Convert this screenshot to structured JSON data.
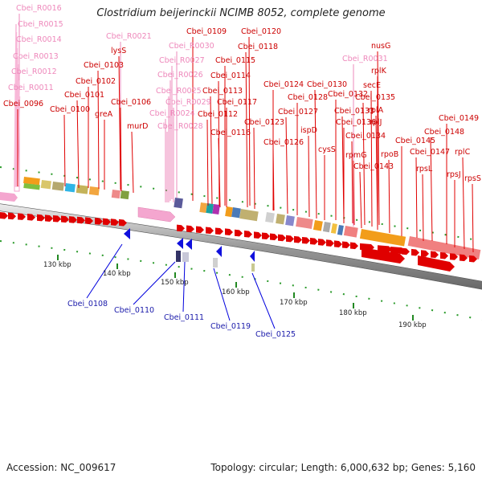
{
  "title": "Clostridium beijerinckii NCIMB 8052, complete genome",
  "footer": {
    "accession": "Accession: NC_009617",
    "summary": "Topology: circular; Length: 6,000,632 bp; Genes: 5,160"
  },
  "colors": {
    "forward_cds": "#e00000",
    "rna": "#f4a6cf",
    "reverse_cds": "#0000dd",
    "label_red": "#cc0000",
    "label_pink": "#ee88bb",
    "label_blue": "#1a1aaa",
    "tick_green": "#228822"
  },
  "ticks": [
    "130 kbp",
    "140 kbp",
    "150 kbp",
    "160 kbp",
    "170 kbp",
    "180 kbp",
    "190 kbp"
  ],
  "labels_rna": [
    "Cbei_R0016",
    "Cbei_R0015",
    "Cbei_R0014",
    "Cbei_R0013",
    "Cbei_R0012",
    "Cbei_R0011",
    "Cbei_R0021",
    "Cbei_R0030",
    "Cbei_R0027",
    "Cbei_R0026",
    "Cbei_R0025",
    "Cbei_R0029",
    "Cbei_R0024",
    "Cbei_R0028",
    "Cbei_R0031"
  ],
  "labels_forward": [
    "Cbei_0096",
    "Cbei_0100",
    "Cbei_0101",
    "Cbei_0102",
    "Cbei_0103",
    "lysS",
    "greA",
    "Cbei_0106",
    "murD",
    "Cbei_0109",
    "Cbei_0120",
    "Cbei_0118",
    "Cbei_0115",
    "Cbei_0114",
    "Cbei_0113",
    "Cbei_0117",
    "Cbei_0112",
    "Cbei_0116",
    "Cbei_0124",
    "Cbei_0123",
    "Cbei_0127",
    "Cbei_0128",
    "Cbei_0126",
    "Cbei_0130",
    "Cbei_0132",
    "ispD",
    "Cbei_0133",
    "cysS",
    "Cbei_0134",
    "Cbei_0135",
    "Cbei_0136",
    "rpmG",
    "nusG",
    "rplK",
    "secE",
    "rplA",
    "rplJ",
    "rpoB",
    "Cbei_0143",
    "Cbei_0145",
    "Cbei_0147",
    "Cbei_0148",
    "Cbei_0149",
    "rpsL",
    "rplC",
    "rpsJ",
    "rpsS"
  ],
  "labels_reverse": [
    "Cbei_0108",
    "Cbei_0110",
    "Cbei_0111",
    "Cbei_0119",
    "Cbei_0125"
  ]
}
